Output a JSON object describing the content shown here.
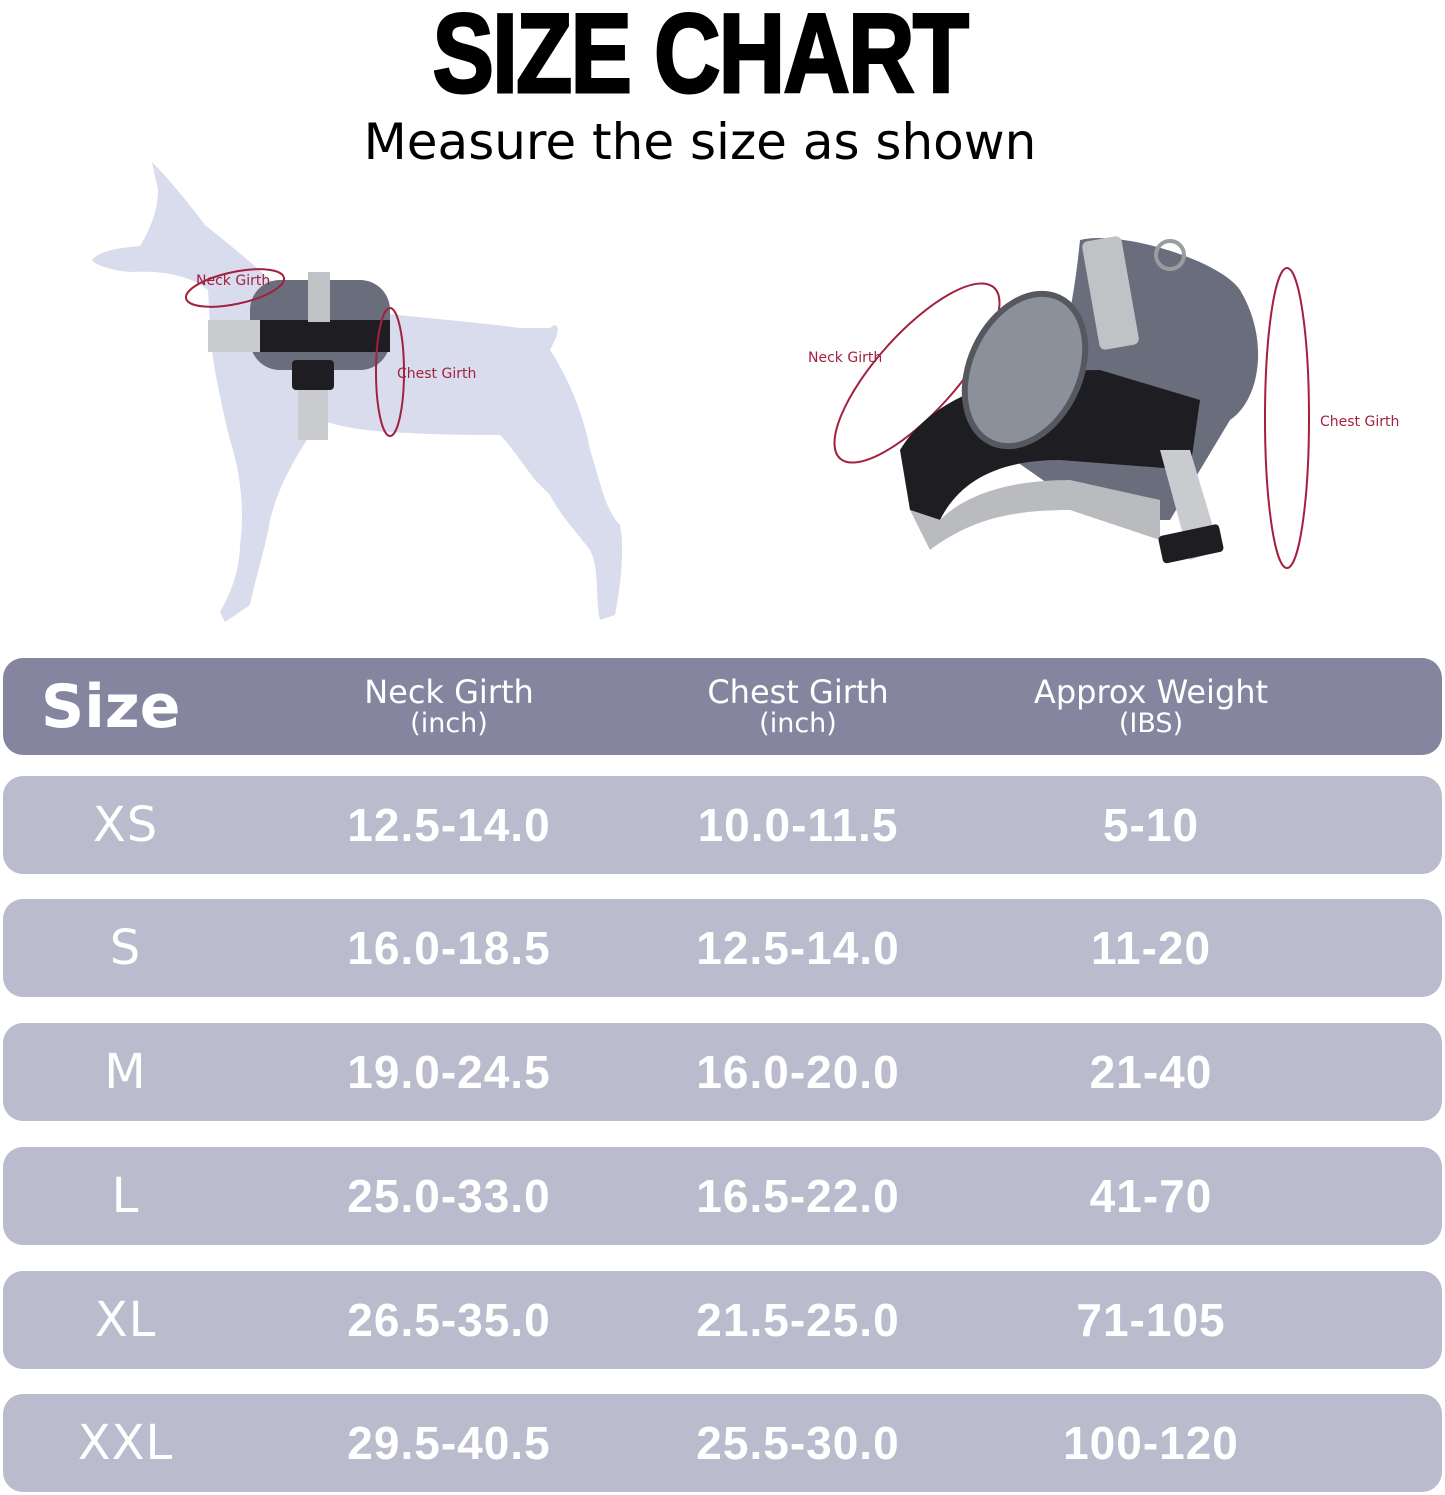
{
  "title": "SIZE CHART",
  "subtitle": "Measure the size as shown",
  "illustrations": {
    "dog": {
      "neck_label": "Neck Girth",
      "chest_label": "Chest Girth"
    },
    "harness": {
      "neck_label": "Neck Girth",
      "chest_label": "Chest Girth"
    }
  },
  "colors": {
    "header_bg": "#8585a0",
    "row_bg": "#babbcc",
    "silhouette": "#d8dcec",
    "measure_line": "#a3203f"
  },
  "table": {
    "headers": [
      {
        "main": "Size",
        "sub": ""
      },
      {
        "main": "Neck Girth",
        "sub": "(inch)"
      },
      {
        "main": "Chest Girth",
        "sub": "(inch)"
      },
      {
        "main": "Approx Weight",
        "sub": "(IBS)"
      }
    ],
    "rows": [
      [
        "XS",
        "12.5-14.0",
        "10.0-11.5",
        "5-10"
      ],
      [
        "S",
        "16.0-18.5",
        "12.5-14.0",
        "11-20"
      ],
      [
        "M",
        "19.0-24.5",
        "16.0-20.0",
        "21-40"
      ],
      [
        "L",
        "25.0-33.0",
        "16.5-22.0",
        "41-70"
      ],
      [
        "XL",
        "26.5-35.0",
        "21.5-25.0",
        "71-105"
      ],
      [
        "XXL",
        "29.5-40.5",
        "25.5-30.0",
        "100-120"
      ]
    ]
  }
}
